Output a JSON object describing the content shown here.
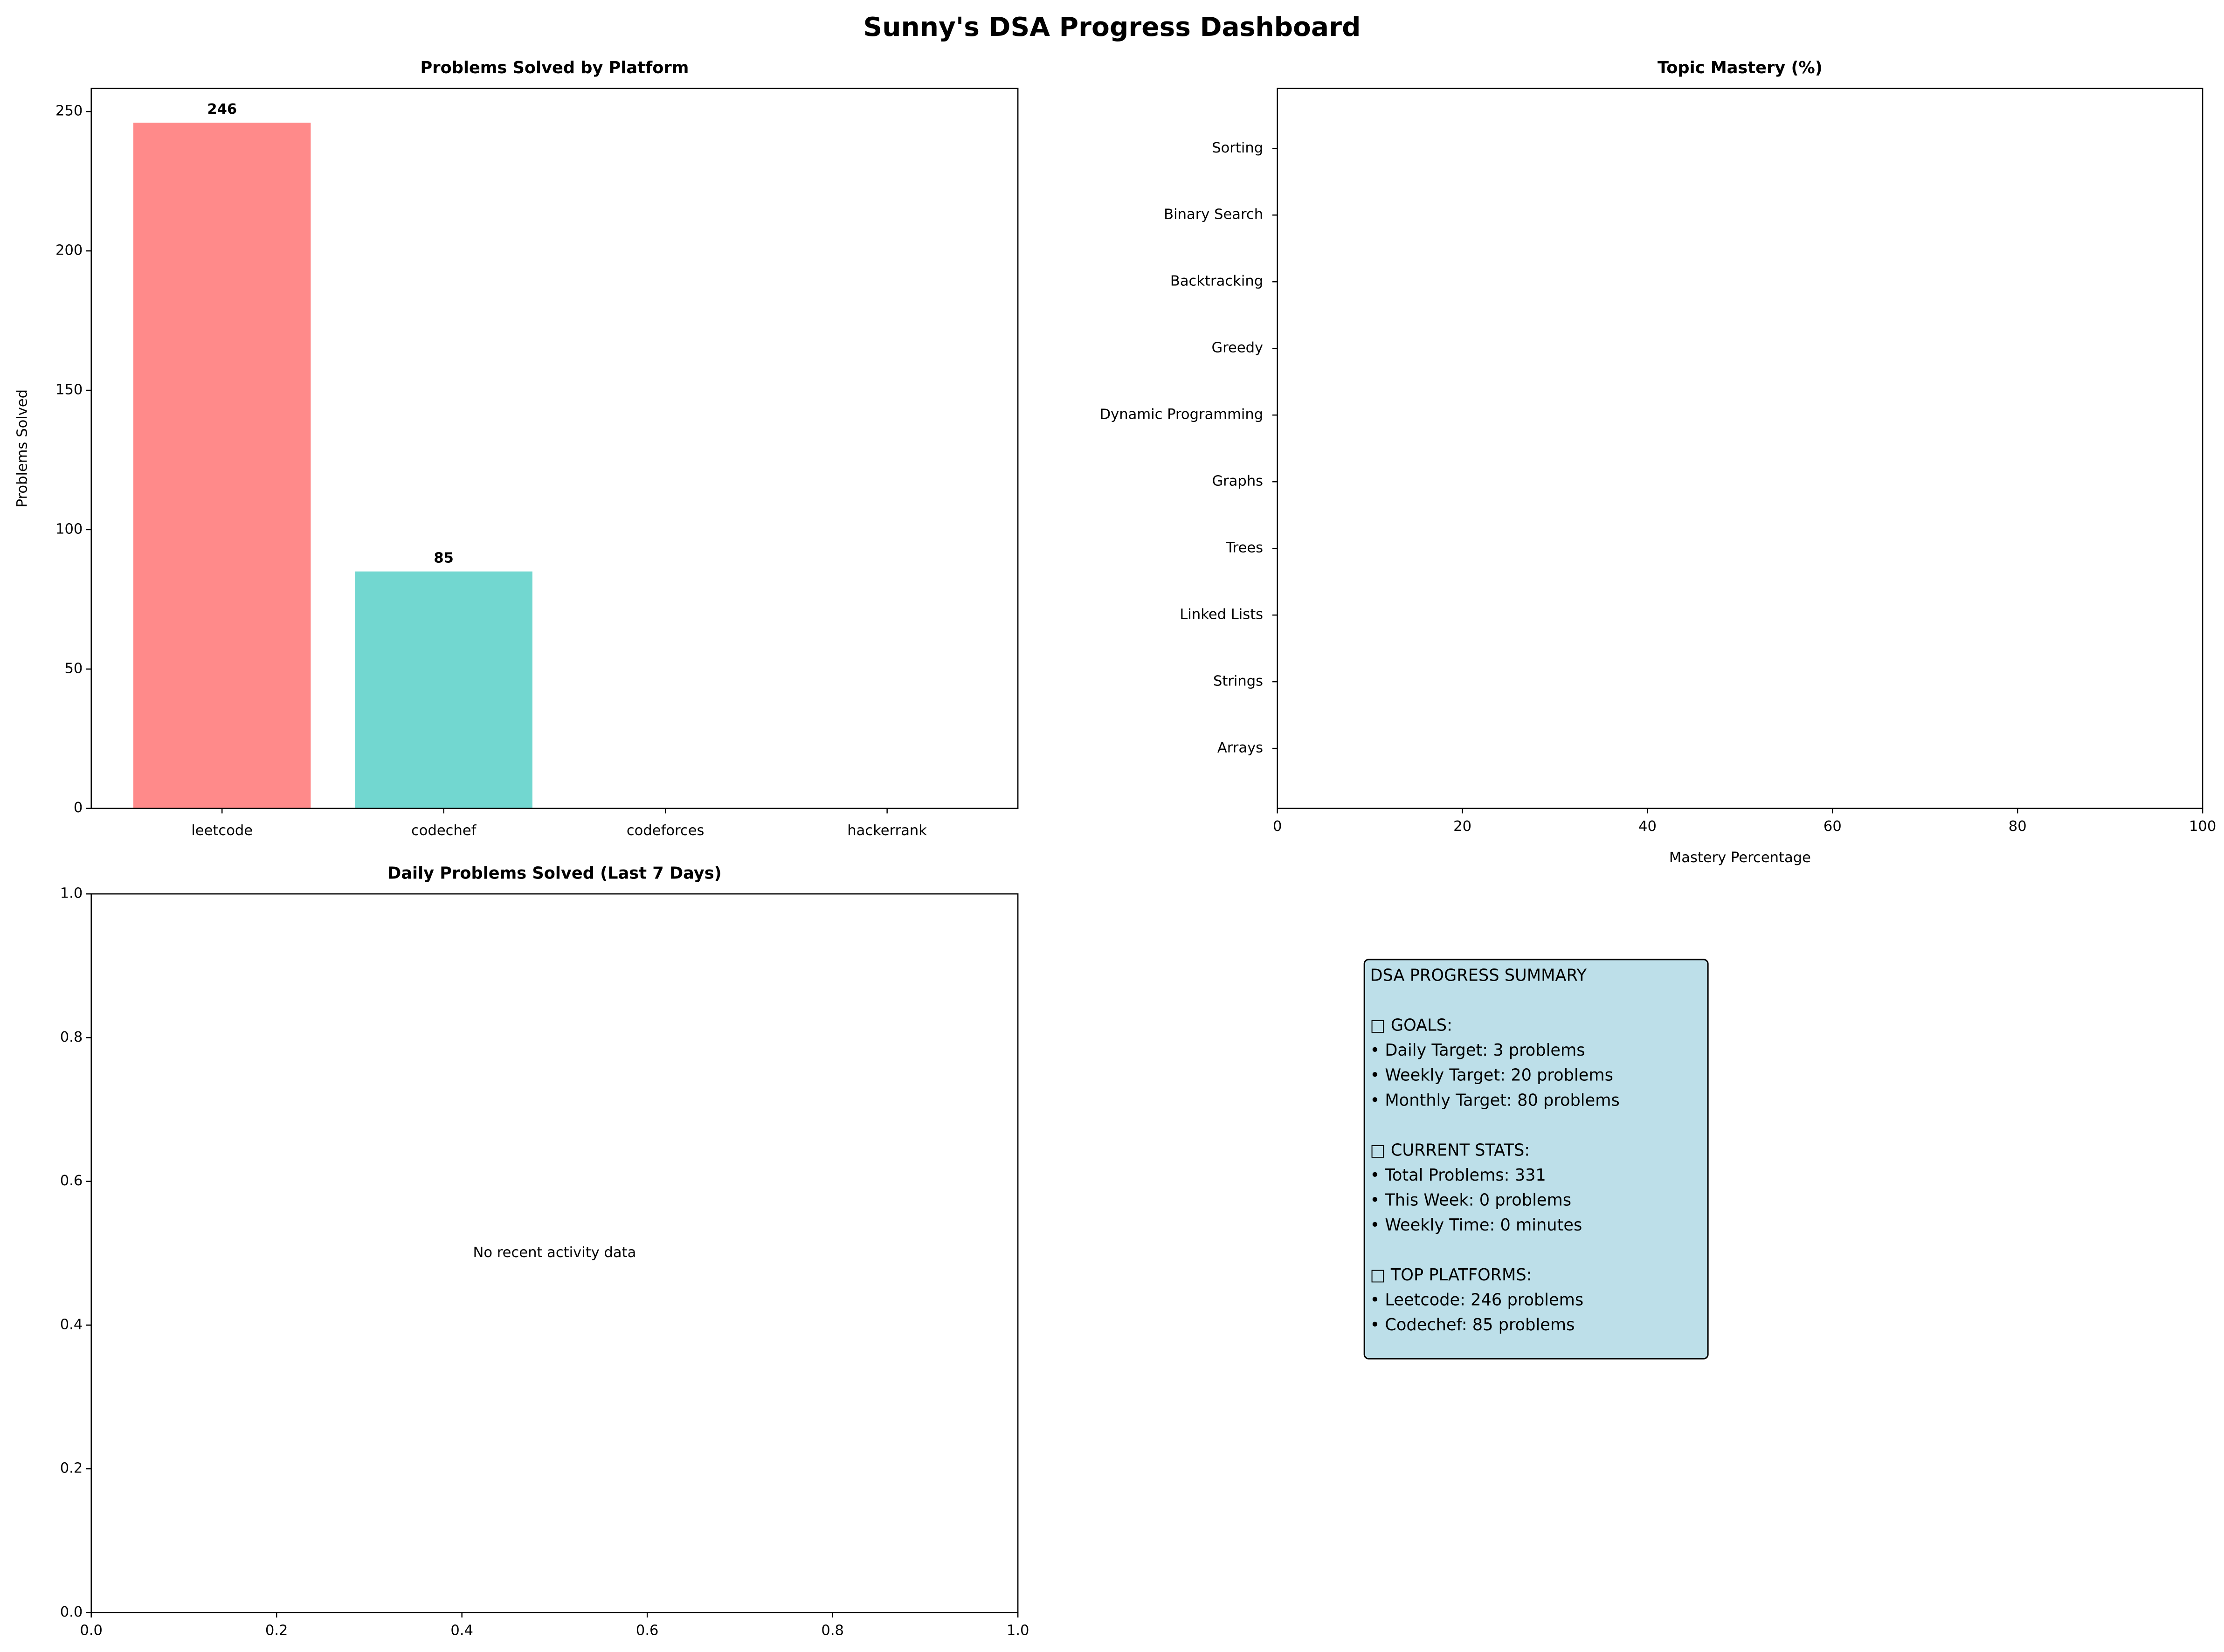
{
  "title": "Sunny's DSA Progress Dashboard",
  "chart_data": [
    {
      "type": "bar",
      "title": "Problems Solved by Platform",
      "ylabel": "Problems Solved",
      "categories": [
        "leetcode",
        "codechef",
        "codeforces",
        "hackerrank"
      ],
      "values": [
        246,
        85,
        0,
        0
      ],
      "colors": [
        "#ff8a8a",
        "#72d7d0",
        "#45b7d1",
        "#96ceb4"
      ],
      "ylim": [
        0,
        258.3
      ],
      "yticks": [
        0,
        50,
        100,
        150,
        200,
        250
      ]
    },
    {
      "type": "barh",
      "title": "Topic Mastery (%)",
      "xlabel": "Mastery Percentage",
      "categories": [
        "Arrays",
        "Strings",
        "Linked Lists",
        "Trees",
        "Graphs",
        "Dynamic Programming",
        "Greedy",
        "Backtracking",
        "Binary Search",
        "Sorting"
      ],
      "values": [
        0,
        0,
        0,
        0,
        0,
        0,
        0,
        0,
        0,
        0
      ],
      "xlim": [
        0,
        100
      ],
      "xticks": [
        0,
        20,
        40,
        60,
        80,
        100
      ]
    },
    {
      "type": "line",
      "title": "Daily Problems Solved (Last 7 Days)",
      "annotation": "No recent activity data",
      "xlim": [
        0,
        1
      ],
      "ylim": [
        0,
        1
      ],
      "xticks": [
        {
          "value": 0,
          "label": "0.0"
        },
        {
          "value": 0.2,
          "label": "0.2"
        },
        {
          "value": 0.4,
          "label": "0.4"
        },
        {
          "value": 0.6,
          "label": "0.6"
        },
        {
          "value": 0.8,
          "label": "0.8"
        },
        {
          "value": 1,
          "label": "1.0"
        }
      ],
      "yticks": [
        {
          "value": 0,
          "label": "0.0"
        },
        {
          "value": 0.2,
          "label": "0.2"
        },
        {
          "value": 0.4,
          "label": "0.4"
        },
        {
          "value": 0.6,
          "label": "0.6"
        },
        {
          "value": 0.8,
          "label": "0.8"
        },
        {
          "value": 1,
          "label": "1.0"
        }
      ]
    }
  ],
  "summary": {
    "title": "DSA PROGRESS SUMMARY",
    "sections": [
      {
        "heading": "□ GOALS:",
        "items": [
          "• Daily Target: 3 problems",
          "• Weekly Target: 20 problems",
          "• Monthly Target: 80 problems"
        ]
      },
      {
        "heading": "□ CURRENT STATS:",
        "items": [
          "• Total Problems: 331",
          "• This Week: 0 problems",
          "• Weekly Time: 0 minutes"
        ]
      },
      {
        "heading": "□ TOP PLATFORMS:",
        "items": [
          "• Leetcode: 246 problems",
          "• Codechef: 85 problems"
        ]
      }
    ]
  }
}
